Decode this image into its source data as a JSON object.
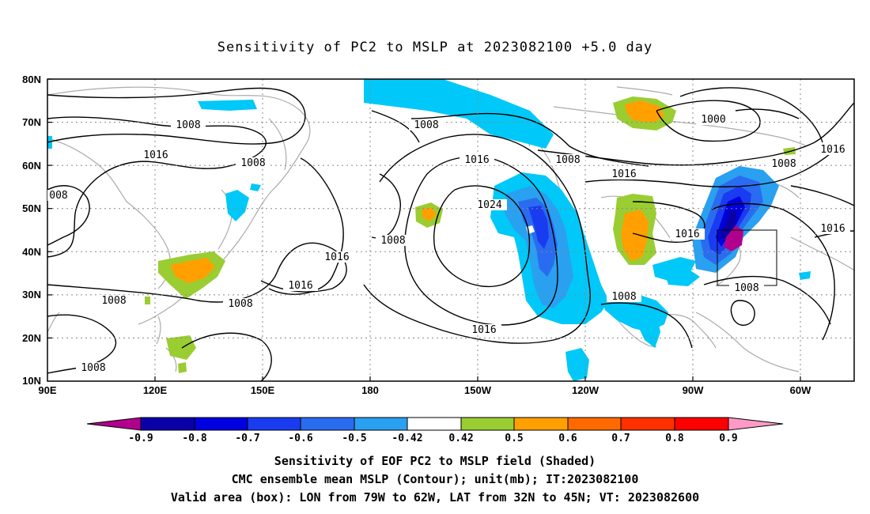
{
  "title": "Sensitivity of PC2 to MSLP at 2023082100 +5.0 day",
  "lat_labels": [
    "80N",
    "70N",
    "60N",
    "50N",
    "40N",
    "30N",
    "20N",
    "10N"
  ],
  "lon_labels": [
    "90E",
    "120E",
    "150E",
    "180",
    "150W",
    "120W",
    "90W",
    "60W"
  ],
  "contour_labels": [
    {
      "text": "1008"
    },
    {
      "text": "1016"
    },
    {
      "text": "1008"
    },
    {
      "text": "008"
    },
    {
      "text": "1008"
    },
    {
      "text": "1008"
    },
    {
      "text": "1008"
    },
    {
      "text": "1008"
    },
    {
      "text": "1016"
    },
    {
      "text": "1016"
    },
    {
      "text": "1008"
    },
    {
      "text": "1016"
    },
    {
      "text": "1024"
    },
    {
      "text": "1016"
    },
    {
      "text": "1008"
    },
    {
      "text": "1016"
    },
    {
      "text": "1008"
    },
    {
      "text": "1000"
    },
    {
      "text": "1016"
    },
    {
      "text": "1008"
    },
    {
      "text": "1008"
    },
    {
      "text": "1016"
    }
  ],
  "colorbar": {
    "labels": [
      "-0.9",
      "-0.8",
      "-0.7",
      "-0.6",
      "-0.5",
      "-0.42",
      "0.42",
      "0.5",
      "0.6",
      "0.7",
      "0.8",
      "0.9"
    ],
    "colors": [
      "#b0008c",
      "#0a00a8",
      "#0000e0",
      "#1a3cf0",
      "#2a6cf0",
      "#2aa0f0",
      "#00c8f8",
      "#ffffff",
      "#9acd32",
      "#ffa000",
      "#ff6a00",
      "#ff3000",
      "#ff0000",
      "#ff9ac8"
    ]
  },
  "footer": {
    "line1": "Sensitivity of EOF PC2 to MSLP field (Shaded)",
    "line2": "CMC ensemble mean MSLP (Contour); unit(mb); IT:2023082100",
    "line3": "Valid area (box): LON from 79W to 62W, LAT from 32N to 45N; VT: 2023082600"
  }
}
